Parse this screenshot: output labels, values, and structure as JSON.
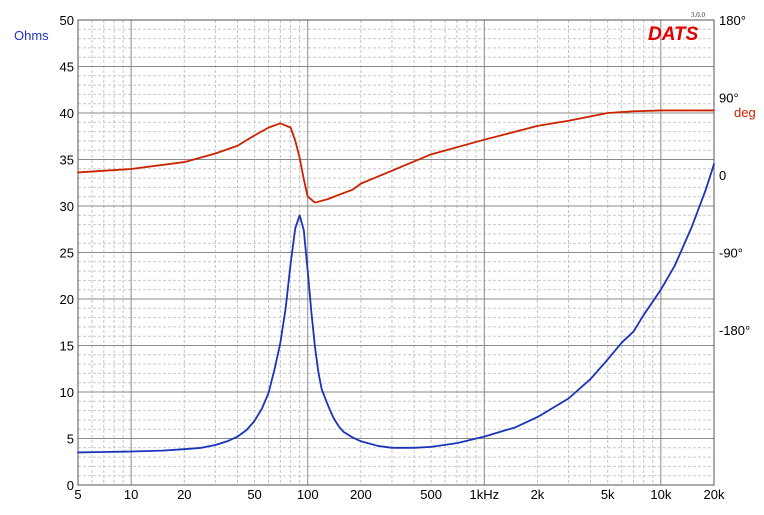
{
  "chart_data": {
    "type": "line",
    "title": "",
    "xlabel": "",
    "ylabel": "Ohms",
    "ylabel_right": "deg",
    "x_scale": "log",
    "xlim": [
      5,
      20000
    ],
    "ylim": [
      0,
      50
    ],
    "ylim_right": [
      -360,
      180
    ],
    "grid": true,
    "x_ticks": [
      {
        "value": 5,
        "label": "5"
      },
      {
        "value": 10,
        "label": "10"
      },
      {
        "value": 20,
        "label": "20"
      },
      {
        "value": 50,
        "label": "50"
      },
      {
        "value": 100,
        "label": "100"
      },
      {
        "value": 200,
        "label": "200"
      },
      {
        "value": 500,
        "label": "500"
      },
      {
        "value": 1000,
        "label": "1kHz"
      },
      {
        "value": 2000,
        "label": "2k"
      },
      {
        "value": 5000,
        "label": "5k"
      },
      {
        "value": 10000,
        "label": "10k"
      },
      {
        "value": 20000,
        "label": "20k"
      }
    ],
    "y_ticks": [
      {
        "value": 0,
        "label": "0"
      },
      {
        "value": 5,
        "label": "5"
      },
      {
        "value": 10,
        "label": "10"
      },
      {
        "value": 15,
        "label": "15"
      },
      {
        "value": 20,
        "label": "20"
      },
      {
        "value": 25,
        "label": "25"
      },
      {
        "value": 30,
        "label": "30"
      },
      {
        "value": 35,
        "label": "35"
      },
      {
        "value": 40,
        "label": "40"
      },
      {
        "value": 45,
        "label": "45"
      },
      {
        "value": 50,
        "label": "50"
      }
    ],
    "y_ticks_right": [
      {
        "value": 180,
        "label": "180°"
      },
      {
        "value": 90,
        "label": "90°"
      },
      {
        "value": 0,
        "label": "0"
      },
      {
        "value": -90,
        "label": "-90°"
      },
      {
        "value": -180,
        "label": "-180°"
      }
    ],
    "series": [
      {
        "axis": "left",
        "color": "#1a33bb",
        "points": [
          [
            5,
            3.5
          ],
          [
            7,
            3.55
          ],
          [
            10,
            3.6
          ],
          [
            15,
            3.7
          ],
          [
            20,
            3.85
          ],
          [
            25,
            4.0
          ],
          [
            30,
            4.3
          ],
          [
            35,
            4.7
          ],
          [
            40,
            5.2
          ],
          [
            45,
            5.9
          ],
          [
            50,
            6.9
          ],
          [
            55,
            8.2
          ],
          [
            60,
            9.9
          ],
          [
            65,
            12.5
          ],
          [
            70,
            15.3
          ],
          [
            75,
            19.0
          ],
          [
            80,
            23.8
          ],
          [
            85,
            27.6
          ],
          [
            90,
            29.0
          ],
          [
            95,
            27.4
          ],
          [
            100,
            23.0
          ],
          [
            105,
            18.5
          ],
          [
            110,
            14.8
          ],
          [
            115,
            12.1
          ],
          [
            120,
            10.3
          ],
          [
            130,
            8.6
          ],
          [
            140,
            7.2
          ],
          [
            150,
            6.3
          ],
          [
            160,
            5.7
          ],
          [
            180,
            5.1
          ],
          [
            200,
            4.7
          ],
          [
            250,
            4.2
          ],
          [
            300,
            4.0
          ],
          [
            400,
            4.0
          ],
          [
            500,
            4.1
          ],
          [
            700,
            4.5
          ],
          [
            1000,
            5.2
          ],
          [
            1500,
            6.2
          ],
          [
            2000,
            7.3
          ],
          [
            3000,
            9.3
          ],
          [
            4000,
            11.4
          ],
          [
            5000,
            13.5
          ],
          [
            6000,
            15.3
          ],
          [
            7000,
            16.5
          ],
          [
            8000,
            18.3
          ],
          [
            10000,
            21.0
          ],
          [
            12000,
            23.6
          ],
          [
            15000,
            27.8
          ],
          [
            18000,
            31.8
          ],
          [
            20000,
            34.5
          ]
        ]
      },
      {
        "axis": "right",
        "color": "#cc2200",
        "points": [
          [
            5,
            3
          ],
          [
            10,
            7
          ],
          [
            20,
            15
          ],
          [
            30,
            25
          ],
          [
            40,
            34
          ],
          [
            50,
            46
          ],
          [
            60,
            55
          ],
          [
            70,
            60
          ],
          [
            80,
            55
          ],
          [
            85,
            40
          ],
          [
            90,
            20
          ],
          [
            95,
            -5
          ],
          [
            100,
            -25
          ],
          [
            110,
            -32
          ],
          [
            130,
            -28
          ],
          [
            150,
            -23
          ],
          [
            180,
            -17
          ],
          [
            200,
            -10
          ],
          [
            300,
            5
          ],
          [
            500,
            24
          ],
          [
            1000,
            41
          ],
          [
            2000,
            57
          ],
          [
            3000,
            63
          ],
          [
            5000,
            72
          ],
          [
            7000,
            74
          ],
          [
            10000,
            75
          ],
          [
            20000,
            75
          ]
        ]
      }
    ]
  },
  "branding": {
    "logo": "DATS",
    "version": "3.0.0"
  }
}
